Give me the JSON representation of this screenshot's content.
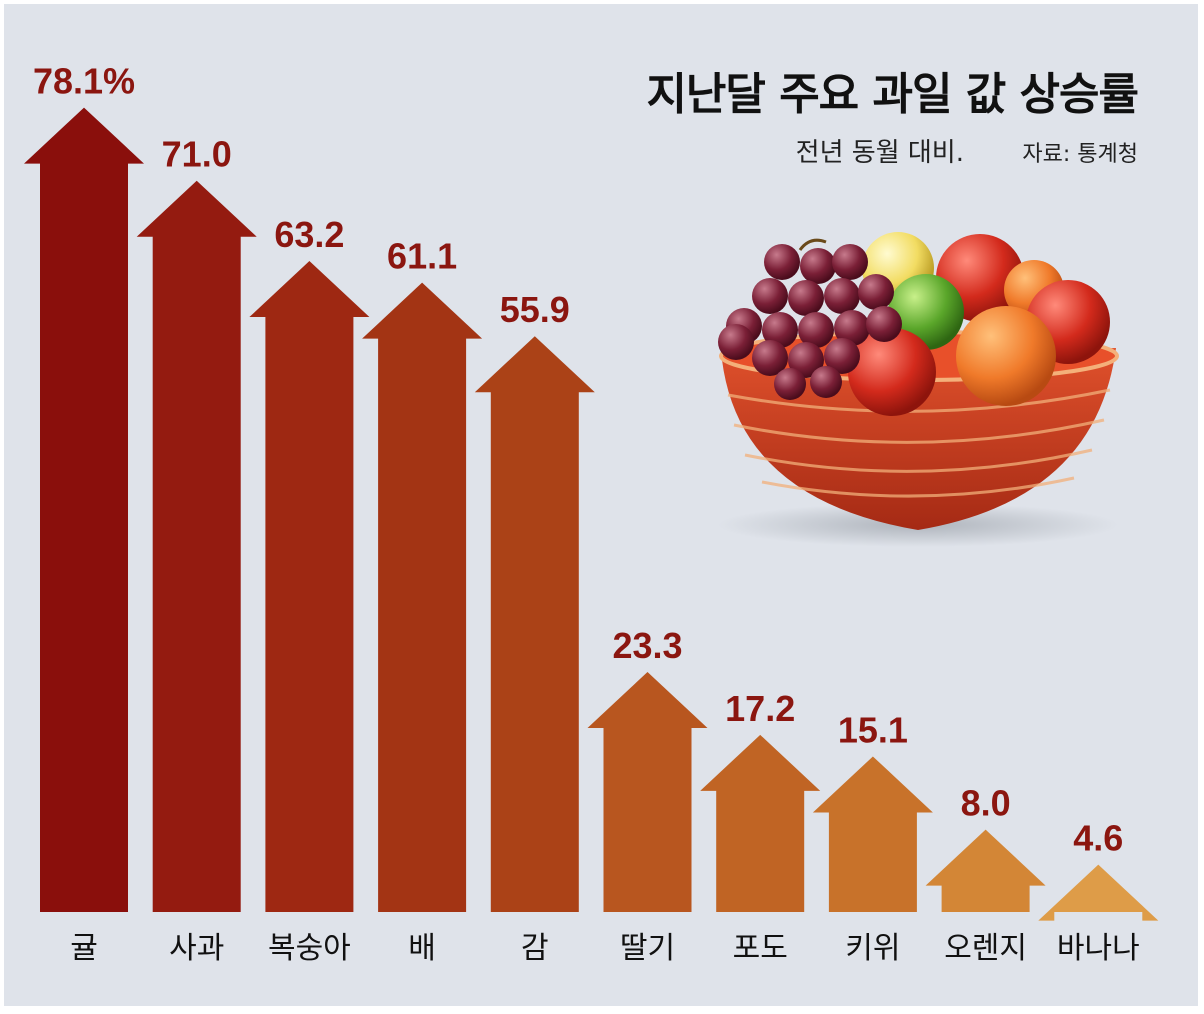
{
  "title": "지난달 주요 과일 값 상승률",
  "subtitle": "전년 동월 대비.",
  "source": "자료: 통계청",
  "chart_data": {
    "type": "bar",
    "title": "지난달 주요 과일 값 상승률",
    "subtitle": "전년 동월 대비.",
    "unit": "%",
    "categories": [
      "귤",
      "사과",
      "복숭아",
      "배",
      "감",
      "딸기",
      "포도",
      "키위",
      "오렌지",
      "바나나"
    ],
    "values": [
      78.1,
      71.0,
      63.2,
      61.1,
      55.9,
      23.3,
      17.2,
      15.1,
      8.0,
      4.6
    ],
    "value_labels": [
      "78.1%",
      "71.0",
      "63.2",
      "61.1",
      "55.9",
      "23.3",
      "17.2",
      "15.1",
      "8.0",
      "4.6"
    ],
    "colors": [
      "#8a0f0c",
      "#941b10",
      "#9e2812",
      "#a33414",
      "#ab4217",
      "#b8561f",
      "#c06424",
      "#c8722a",
      "#d38636",
      "#de9c48"
    ],
    "ylim": [
      0,
      80
    ],
    "legend": "none",
    "grid": false,
    "illustration": "fruit-basket-icon"
  }
}
